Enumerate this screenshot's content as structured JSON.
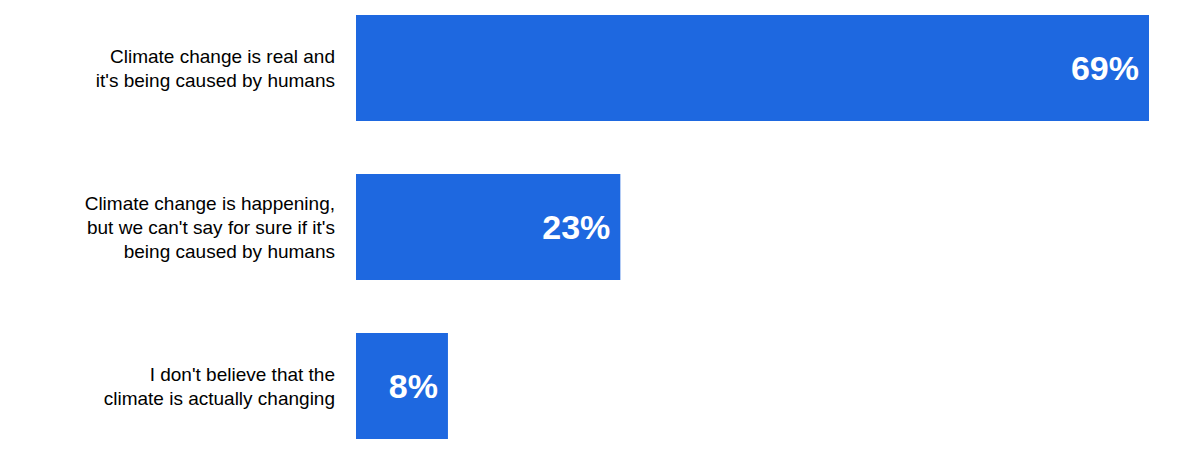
{
  "chart_data": {
    "type": "bar",
    "orientation": "horizontal",
    "categories": [
      "Climate change is real and\nit's being caused by humans",
      "Climate change is happening,\nbut we can't say for sure if it's\nbeing caused by humans",
      "I don't believe that the\nclimate is actually changing"
    ],
    "values": [
      69,
      23,
      8
    ],
    "value_labels": [
      "69%",
      "23%",
      "8%"
    ],
    "data_labels": true,
    "color": "#1e68e0",
    "xlim": [
      0,
      69
    ],
    "tick_labels": false,
    "grid": false
  }
}
